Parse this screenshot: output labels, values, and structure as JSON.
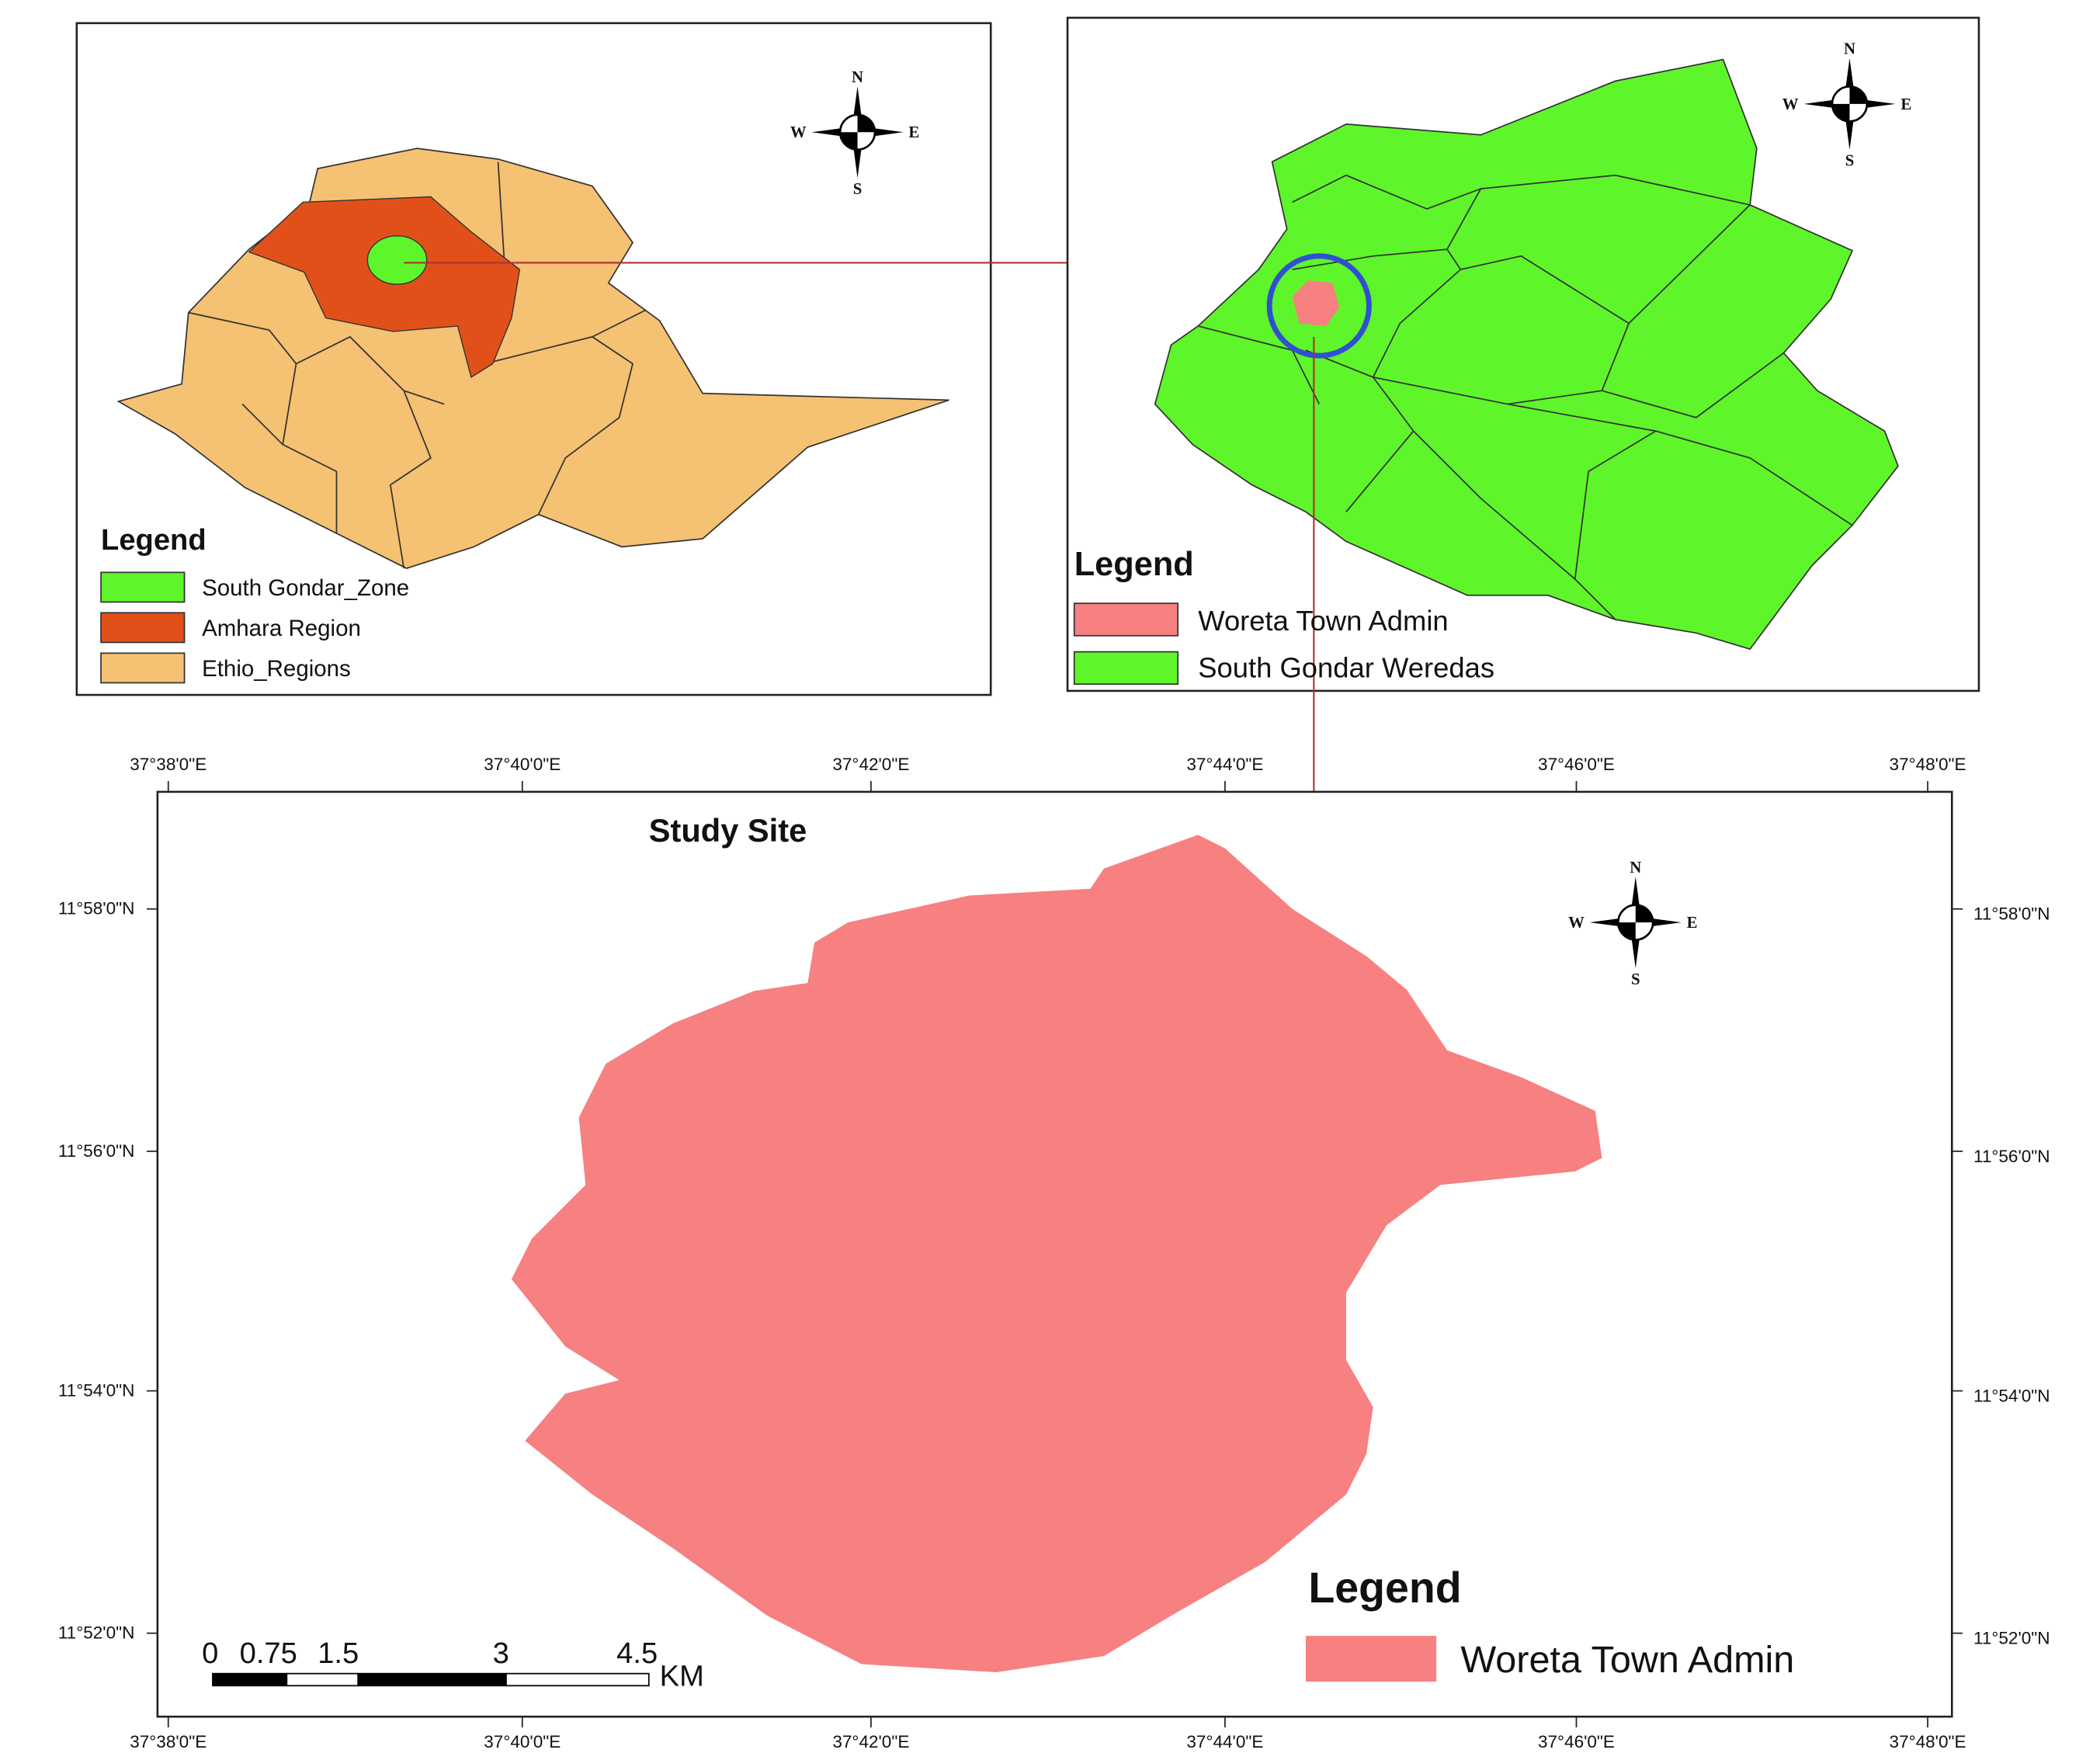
{
  "panel_ethiopia": {
    "legend_title": "Legend",
    "legend": [
      "South Gondar_Zone",
      "Amhara Region",
      "Ethio_Regions"
    ],
    "compass": [
      "N",
      "S",
      "W",
      "E"
    ]
  },
  "panel_south_gondar": {
    "legend_title": "Legend",
    "legend": [
      "Woreta Town Admin",
      "South Gondar Weredas"
    ],
    "compass": [
      "N",
      "S",
      "W",
      "E"
    ]
  },
  "study_site": {
    "title": "Study Site",
    "top_ticks": [
      "37°38'0\"E",
      "37°40'0\"E",
      "37°42'0\"E",
      "37°44'0\"E",
      "37°46'0\"E",
      "37°48'0\"E"
    ],
    "bottom_ticks": [
      "37°38'0\"E",
      "37°40'0\"E",
      "37°42'0\"E",
      "37°44'0\"E",
      "37°46'0\"E",
      "37°48'0\"E"
    ],
    "left_ticks": [
      "11°58'0\"N",
      "11°56'0\"N",
      "11°54'0\"N",
      "11°52'0\"N"
    ],
    "right_ticks": [
      "11°58'0\"N",
      "11°56'0\"N",
      "11°54'0\"N",
      "11°52'0\"N"
    ],
    "legend_title": "Legend",
    "legend": [
      "Woreta Town Admin"
    ],
    "scale_labels": [
      "0",
      "0.75",
      "1.5",
      "3",
      "4.5"
    ],
    "scale_unit": "KM",
    "compass": [
      "N",
      "S",
      "W",
      "E"
    ]
  }
}
